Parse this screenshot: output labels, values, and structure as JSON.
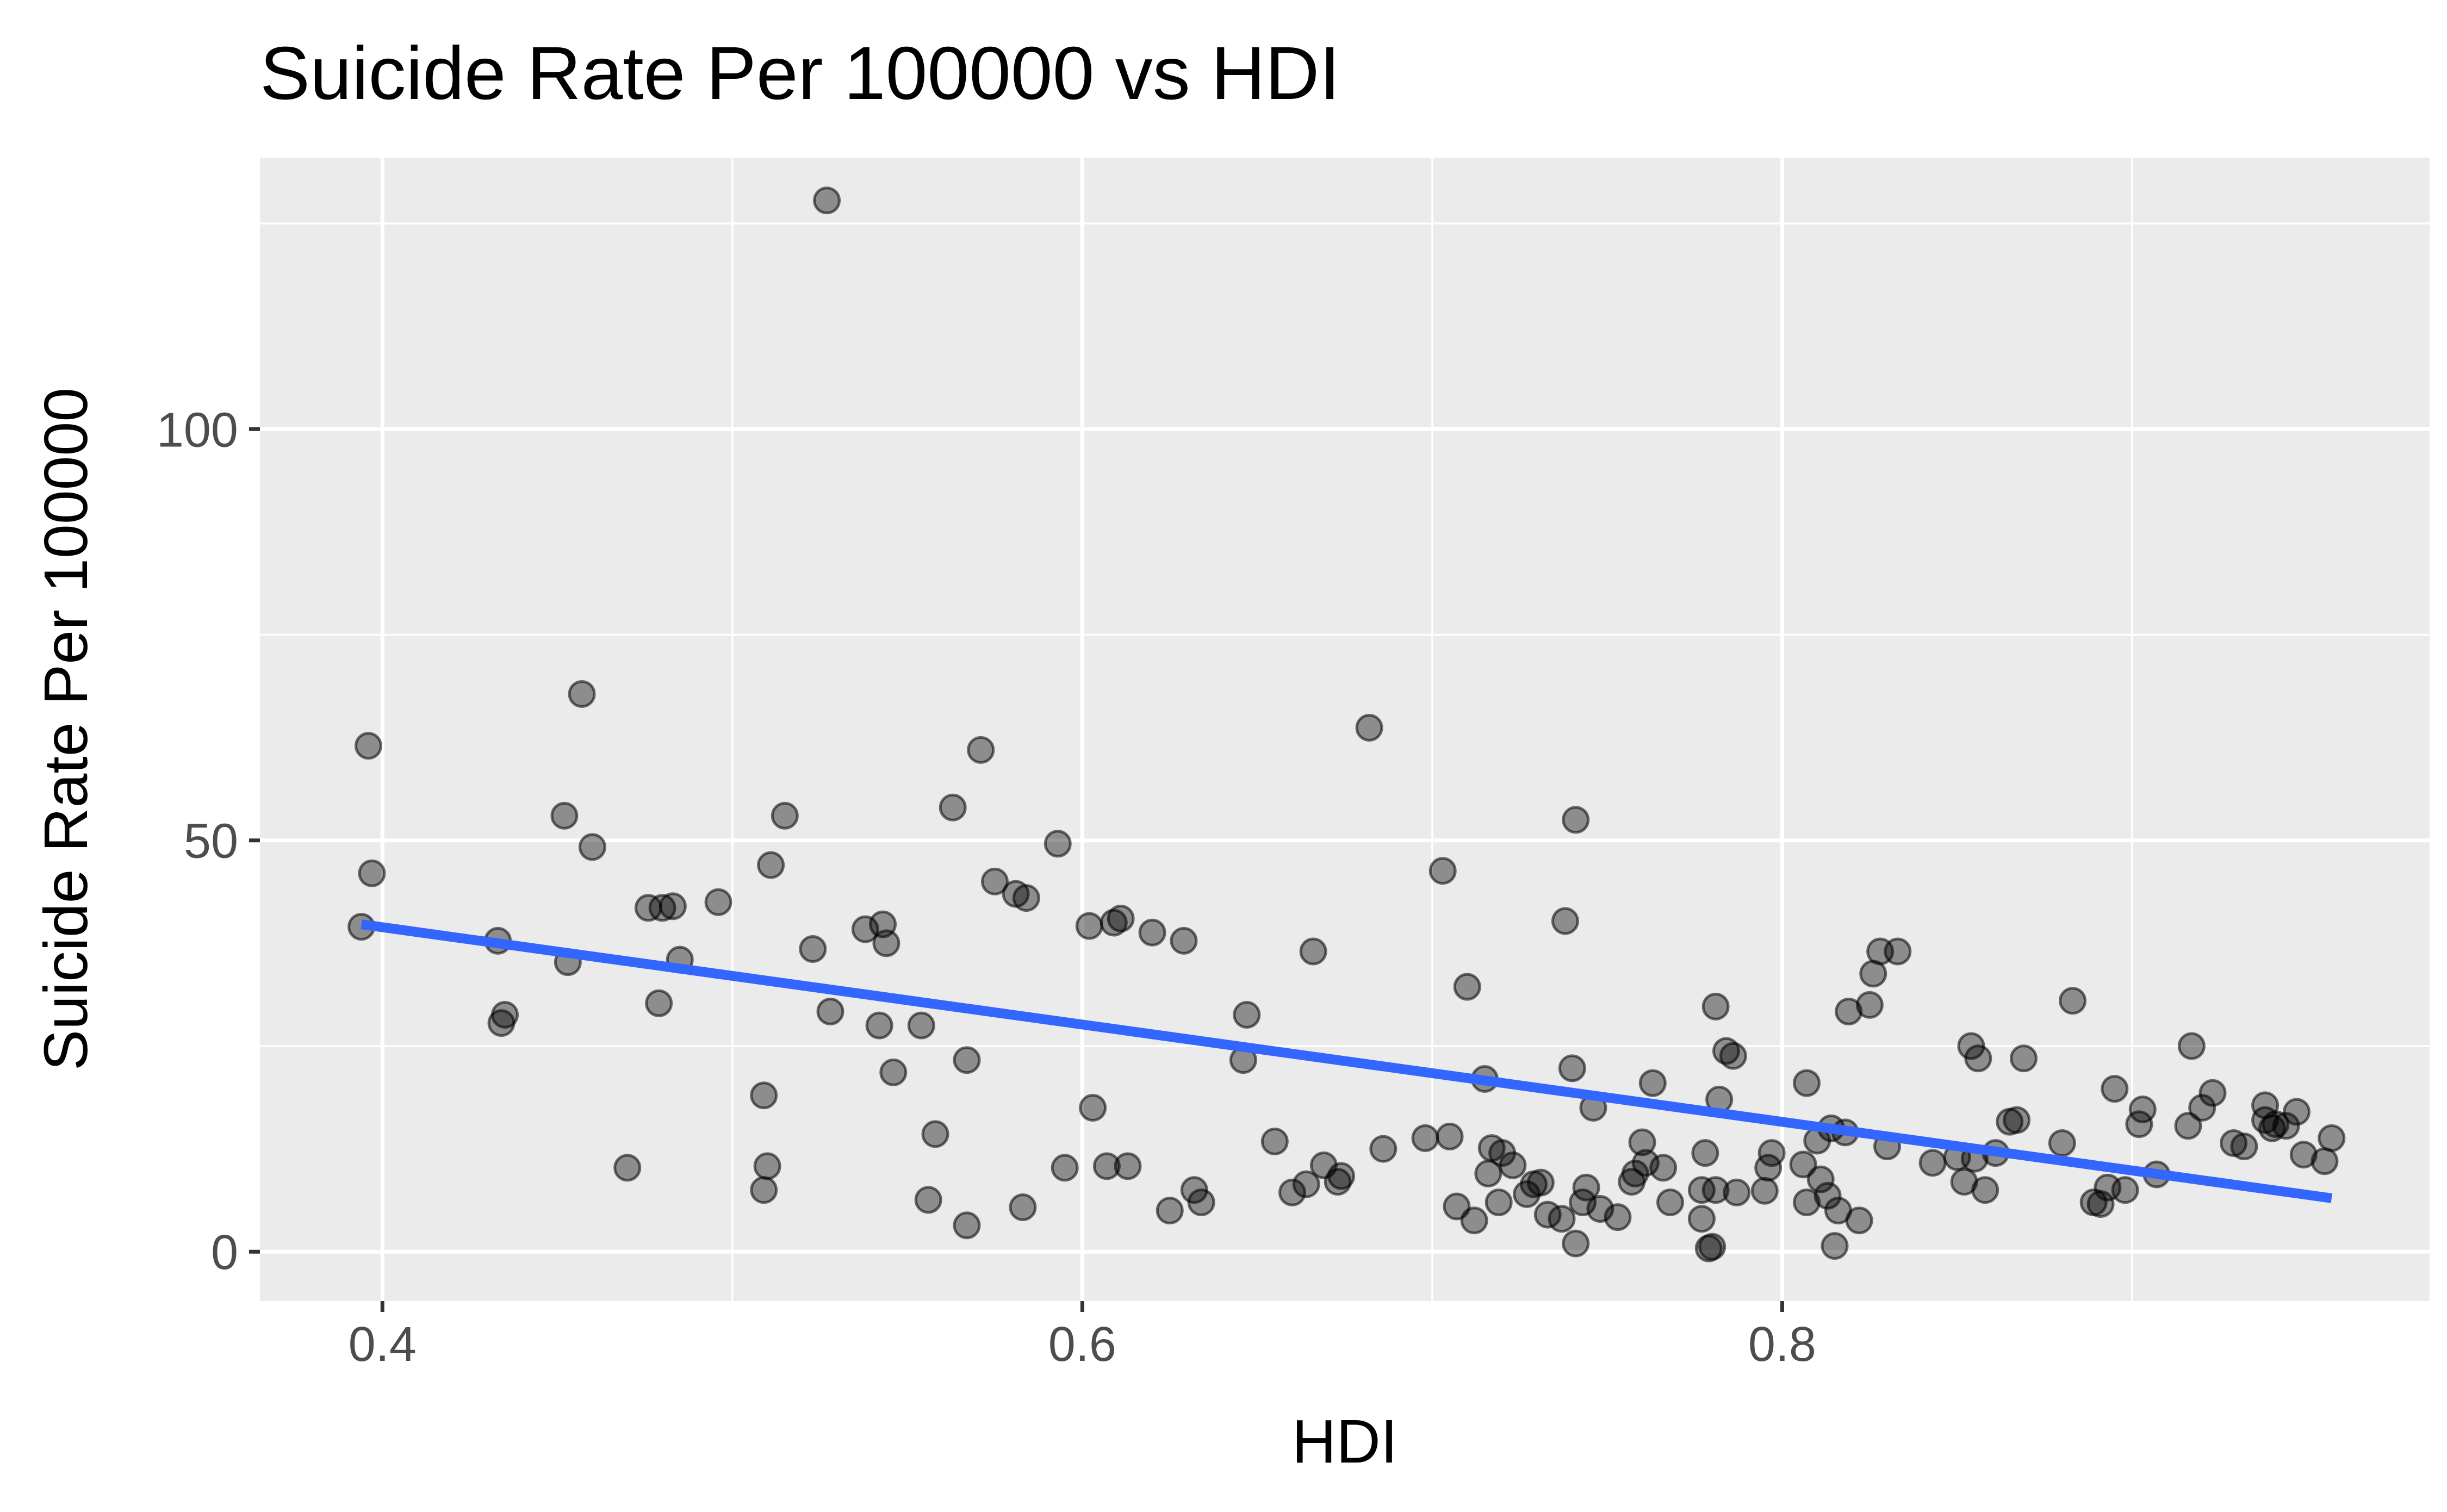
{
  "chart_data": {
    "type": "scatter",
    "title": "Suicide Rate Per 100000 vs HDI",
    "xlabel": "HDI",
    "ylabel": "Suicide Rate Per 100000",
    "xlim": [
      0.365,
      0.985
    ],
    "ylim": [
      -6,
      133
    ],
    "x_ticks": [
      0.4,
      0.6,
      0.8
    ],
    "x_tick_labels": [
      "0.4",
      "0.6",
      "0.8"
    ],
    "y_ticks": [
      0,
      50,
      100
    ],
    "y_tick_labels": [
      "0",
      "50",
      "100"
    ],
    "grid": true,
    "legend": "none",
    "points": [
      [
        0.394,
        39.5
      ],
      [
        0.396,
        61.5
      ],
      [
        0.397,
        46.0
      ],
      [
        0.433,
        37.8
      ],
      [
        0.434,
        27.8
      ],
      [
        0.435,
        28.8
      ],
      [
        0.452,
        53.0
      ],
      [
        0.453,
        35.2
      ],
      [
        0.457,
        67.8
      ],
      [
        0.46,
        49.2
      ],
      [
        0.47,
        10.2
      ],
      [
        0.476,
        41.8
      ],
      [
        0.479,
        30.2
      ],
      [
        0.48,
        41.8
      ],
      [
        0.483,
        42.0
      ],
      [
        0.485,
        35.5
      ],
      [
        0.496,
        42.5
      ],
      [
        0.509,
        7.5
      ],
      [
        0.509,
        19.0
      ],
      [
        0.51,
        10.4
      ],
      [
        0.511,
        47.0
      ],
      [
        0.515,
        53.0
      ],
      [
        0.523,
        36.8
      ],
      [
        0.527,
        127.8
      ],
      [
        0.528,
        29.2
      ],
      [
        0.538,
        39.2
      ],
      [
        0.542,
        27.5
      ],
      [
        0.543,
        39.8
      ],
      [
        0.544,
        37.5
      ],
      [
        0.546,
        21.8
      ],
      [
        0.554,
        27.5
      ],
      [
        0.556,
        6.3
      ],
      [
        0.558,
        14.3
      ],
      [
        0.563,
        54.0
      ],
      [
        0.567,
        23.3
      ],
      [
        0.567,
        3.2
      ],
      [
        0.571,
        61.0
      ],
      [
        0.575,
        45.0
      ],
      [
        0.581,
        43.5
      ],
      [
        0.583,
        5.4
      ],
      [
        0.584,
        43.0
      ],
      [
        0.593,
        49.6
      ],
      [
        0.595,
        10.2
      ],
      [
        0.602,
        39.6
      ],
      [
        0.603,
        17.5
      ],
      [
        0.607,
        10.4
      ],
      [
        0.609,
        40.0
      ],
      [
        0.611,
        40.5
      ],
      [
        0.613,
        10.4
      ],
      [
        0.62,
        38.8
      ],
      [
        0.625,
        5.0
      ],
      [
        0.629,
        37.8
      ],
      [
        0.632,
        7.5
      ],
      [
        0.634,
        6.0
      ],
      [
        0.646,
        23.3
      ],
      [
        0.647,
        28.8
      ],
      [
        0.655,
        13.4
      ],
      [
        0.66,
        7.2
      ],
      [
        0.664,
        8.2
      ],
      [
        0.666,
        36.5
      ],
      [
        0.669,
        10.5
      ],
      [
        0.673,
        8.5
      ],
      [
        0.674,
        9.2
      ],
      [
        0.682,
        63.7
      ],
      [
        0.686,
        12.5
      ],
      [
        0.698,
        13.8
      ],
      [
        0.703,
        46.3
      ],
      [
        0.705,
        14.0
      ],
      [
        0.707,
        5.5
      ],
      [
        0.71,
        32.2
      ],
      [
        0.712,
        3.8
      ],
      [
        0.715,
        21.0
      ],
      [
        0.716,
        9.5
      ],
      [
        0.717,
        12.6
      ],
      [
        0.719,
        6.0
      ],
      [
        0.72,
        12.0
      ],
      [
        0.723,
        10.5
      ],
      [
        0.727,
        7.0
      ],
      [
        0.729,
        8.2
      ],
      [
        0.731,
        8.4
      ],
      [
        0.733,
        4.5
      ],
      [
        0.737,
        4.0
      ],
      [
        0.738,
        40.2
      ],
      [
        0.74,
        22.3
      ],
      [
        0.741,
        52.5
      ],
      [
        0.741,
        1.0
      ],
      [
        0.743,
        6.0
      ],
      [
        0.744,
        7.8
      ],
      [
        0.746,
        17.5
      ],
      [
        0.748,
        5.2
      ],
      [
        0.753,
        4.2
      ],
      [
        0.757,
        8.5
      ],
      [
        0.758,
        9.5
      ],
      [
        0.76,
        13.3
      ],
      [
        0.761,
        10.8
      ],
      [
        0.763,
        20.5
      ],
      [
        0.766,
        10.2
      ],
      [
        0.768,
        6.0
      ],
      [
        0.777,
        4.0
      ],
      [
        0.777,
        7.5
      ],
      [
        0.778,
        12.0
      ],
      [
        0.779,
        0.4
      ],
      [
        0.78,
        0.6
      ],
      [
        0.781,
        29.8
      ],
      [
        0.781,
        7.5
      ],
      [
        0.782,
        18.5
      ],
      [
        0.784,
        24.4
      ],
      [
        0.786,
        23.8
      ],
      [
        0.787,
        7.2
      ],
      [
        0.795,
        7.4
      ],
      [
        0.796,
        10.2
      ],
      [
        0.797,
        12.0
      ],
      [
        0.806,
        10.6
      ],
      [
        0.807,
        20.5
      ],
      [
        0.807,
        6.0
      ],
      [
        0.81,
        13.5
      ],
      [
        0.811,
        8.8
      ],
      [
        0.813,
        6.8
      ],
      [
        0.814,
        15.0
      ],
      [
        0.815,
        0.7
      ],
      [
        0.816,
        5.0
      ],
      [
        0.818,
        14.5
      ],
      [
        0.819,
        29.2
      ],
      [
        0.822,
        3.8
      ],
      [
        0.825,
        30.0
      ],
      [
        0.826,
        33.8
      ],
      [
        0.828,
        36.5
      ],
      [
        0.83,
        12.8
      ],
      [
        0.833,
        36.5
      ],
      [
        0.843,
        10.8
      ],
      [
        0.85,
        11.5
      ],
      [
        0.852,
        8.5
      ],
      [
        0.854,
        25.0
      ],
      [
        0.855,
        11.3
      ],
      [
        0.856,
        23.5
      ],
      [
        0.858,
        7.5
      ],
      [
        0.861,
        12.0
      ],
      [
        0.865,
        15.8
      ],
      [
        0.867,
        16.0
      ],
      [
        0.869,
        23.5
      ],
      [
        0.88,
        13.2
      ],
      [
        0.883,
        30.5
      ],
      [
        0.889,
        6.0
      ],
      [
        0.891,
        5.8
      ],
      [
        0.893,
        7.8
      ],
      [
        0.895,
        19.8
      ],
      [
        0.898,
        7.5
      ],
      [
        0.902,
        15.5
      ],
      [
        0.903,
        17.3
      ],
      [
        0.907,
        9.4
      ],
      [
        0.916,
        15.3
      ],
      [
        0.917,
        25.0
      ],
      [
        0.92,
        17.5
      ],
      [
        0.923,
        19.3
      ],
      [
        0.929,
        13.2
      ],
      [
        0.932,
        12.8
      ],
      [
        0.938,
        16.0
      ],
      [
        0.938,
        17.8
      ],
      [
        0.94,
        15.0
      ],
      [
        0.941,
        15.5
      ],
      [
        0.944,
        15.3
      ],
      [
        0.947,
        17.0
      ],
      [
        0.949,
        11.8
      ],
      [
        0.955,
        11.0
      ],
      [
        0.957,
        13.8
      ]
    ],
    "trend_line": {
      "x": [
        0.394,
        0.957
      ],
      "y": [
        39.8,
        6.5
      ],
      "color": "#3366FF"
    },
    "point_color": "#000000",
    "point_opacity": 0.4,
    "panel_background": "#EBEBEB"
  }
}
